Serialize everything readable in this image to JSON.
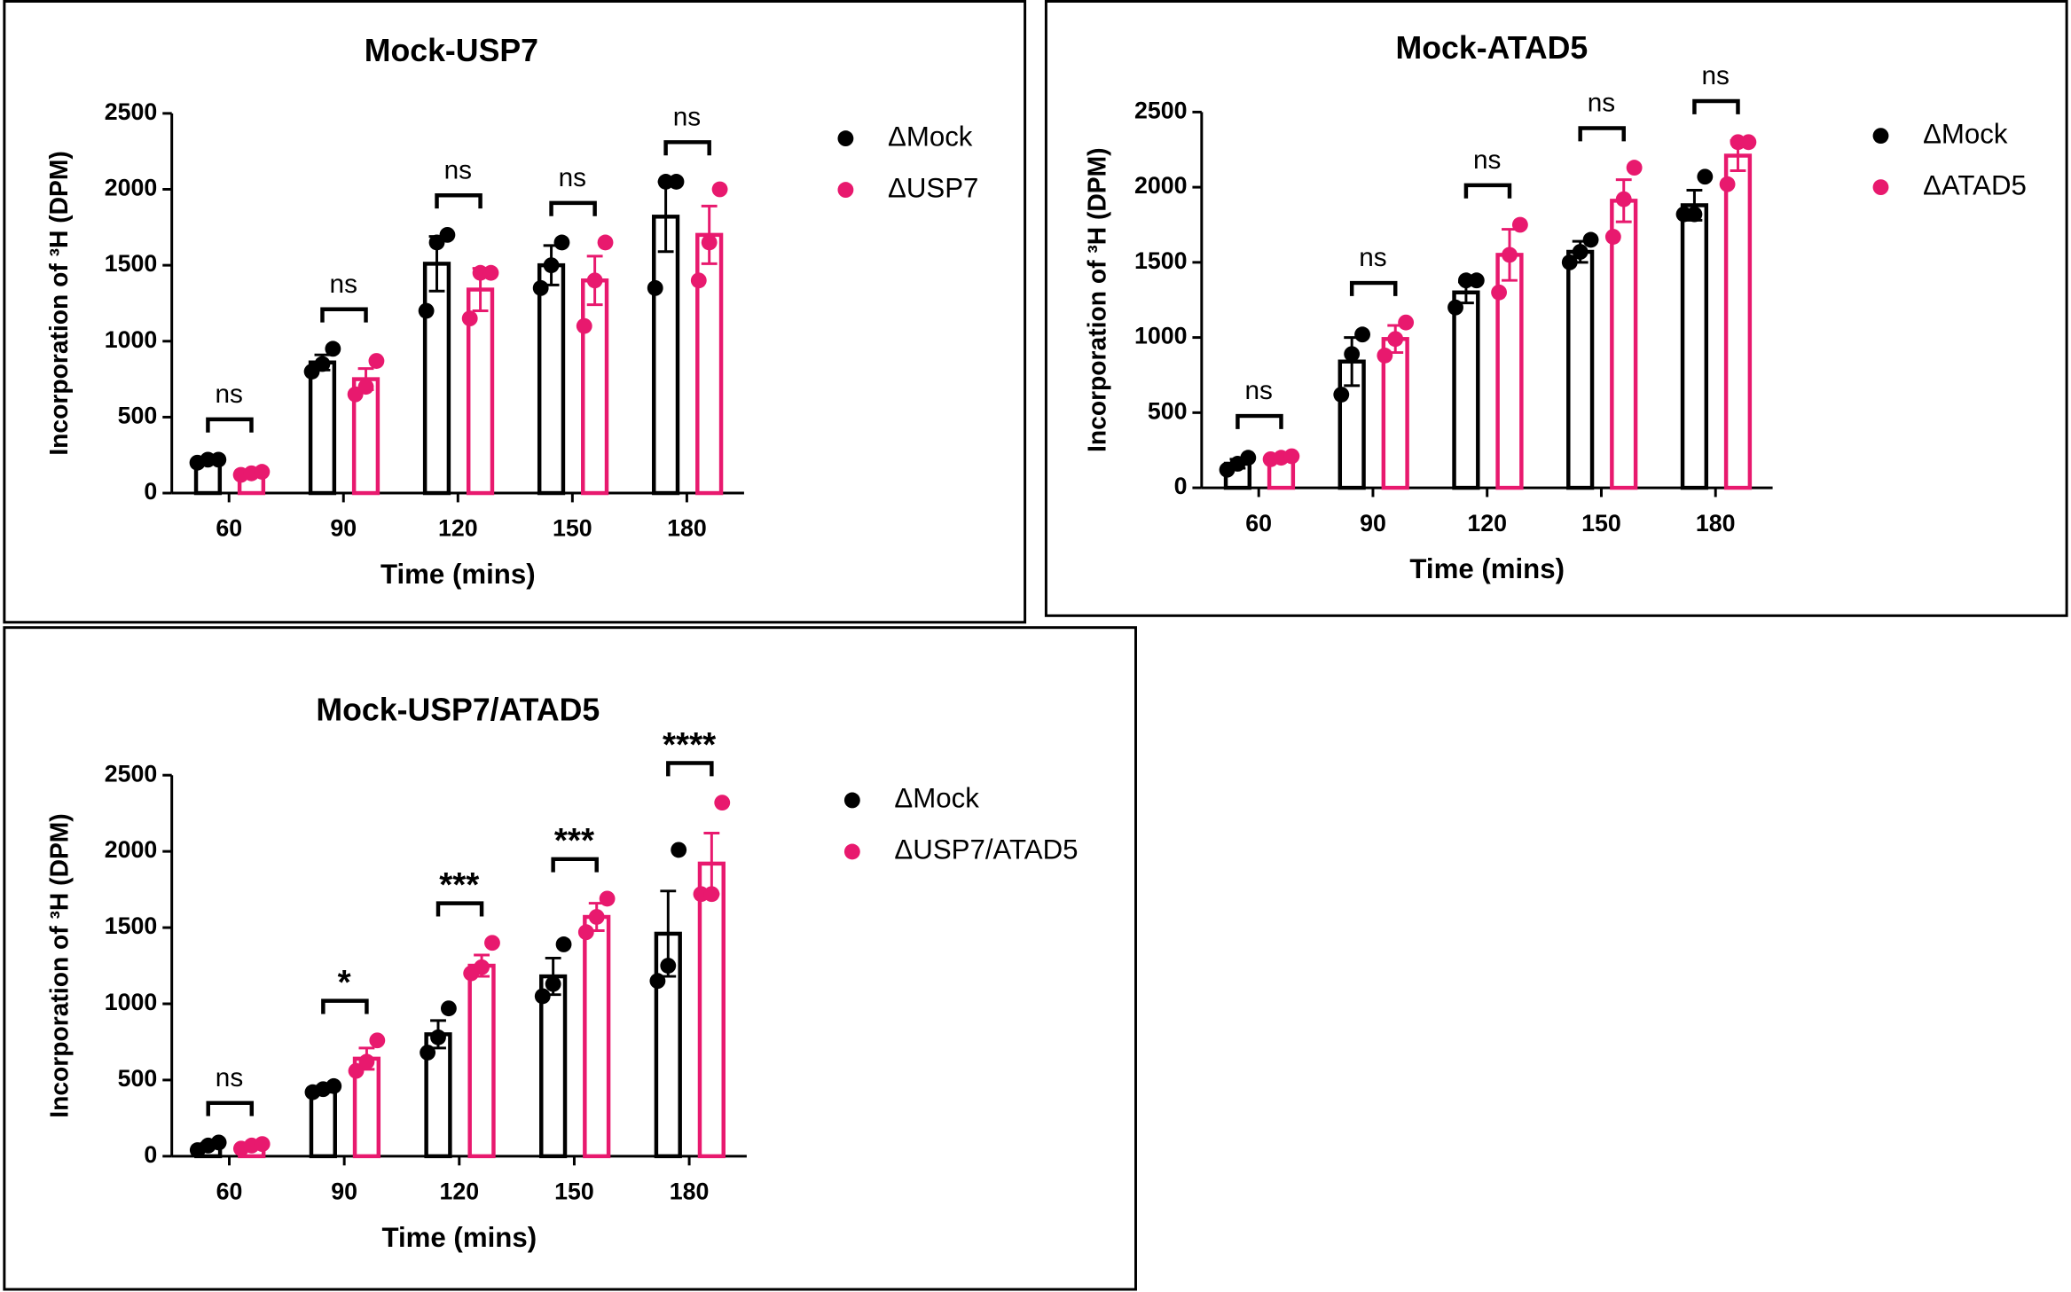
{
  "chart_data": [
    {
      "type": "bar",
      "title": "Mock-USP7",
      "x_label": "Time (mins)",
      "y_label": "Incorporation of ³H (DPM)",
      "categories": [
        "60",
        "90",
        "120",
        "150",
        "180"
      ],
      "series": [
        {
          "name": "ΔMock",
          "color": "#000000",
          "values": [
            210,
            860,
            1510,
            1500,
            1820
          ],
          "errors": [
            15,
            50,
            180,
            130,
            230
          ],
          "points": [
            [
              200,
              220,
              220
            ],
            [
              800,
              850,
              950
            ],
            [
              1200,
              1650,
              1700
            ],
            [
              1350,
              1500,
              1650
            ],
            [
              1350,
              2050,
              2050
            ]
          ]
        },
        {
          "name": "ΔUSP7",
          "color": "#e8196e",
          "values": [
            130,
            750,
            1340,
            1400,
            1700
          ],
          "errors": [
            10,
            70,
            140,
            160,
            190
          ],
          "points": [
            [
              120,
              130,
              140
            ],
            [
              650,
              700,
              870
            ],
            [
              1150,
              1450,
              1450
            ],
            [
              1100,
              1400,
              1650
            ],
            [
              1400,
              1650,
              2000
            ]
          ]
        }
      ],
      "significance": [
        "ns",
        "ns",
        "ns",
        "ns",
        "ns"
      ],
      "ylim": [
        0,
        2500
      ],
      "yticks": [
        0,
        500,
        1000,
        1500,
        2000,
        2500
      ]
    },
    {
      "type": "bar",
      "title": "Mock-ATAD5",
      "x_label": "Time (mins)",
      "y_label": "Incorporation of ³H (DPM)",
      "categories": [
        "60",
        "90",
        "120",
        "150",
        "180"
      ],
      "series": [
        {
          "name": "ΔMock",
          "color": "#000000",
          "values": [
            160,
            840,
            1300,
            1570,
            1880
          ],
          "errors": [
            30,
            160,
            70,
            70,
            100
          ],
          "points": [
            [
              120,
              160,
              200
            ],
            [
              620,
              890,
              1020
            ],
            [
              1200,
              1380,
              1380
            ],
            [
              1500,
              1570,
              1650
            ],
            [
              1820,
              1820,
              2070
            ]
          ]
        },
        {
          "name": "ΔATAD5",
          "color": "#e8196e",
          "values": [
            200,
            990,
            1550,
            1910,
            2210
          ],
          "errors": [
            15,
            90,
            170,
            140,
            100
          ],
          "points": [
            [
              190,
              200,
              210
            ],
            [
              880,
              990,
              1100
            ],
            [
              1300,
              1550,
              1750
            ],
            [
              1670,
              1920,
              2130
            ],
            [
              2020,
              2300,
              2300
            ]
          ]
        }
      ],
      "significance": [
        "ns",
        "ns",
        "ns",
        "ns",
        "ns"
      ],
      "ylim": [
        0,
        2500
      ],
      "yticks": [
        0,
        500,
        1000,
        1500,
        2000,
        2500
      ]
    },
    {
      "type": "bar",
      "title": "Mock-USP7/ATAD5",
      "x_label": "Time (mins)",
      "y_label": "Incorporation of ³H (DPM)",
      "categories": [
        "60",
        "90",
        "120",
        "150",
        "180"
      ],
      "series": [
        {
          "name": "ΔMock",
          "color": "#000000",
          "values": [
            70,
            440,
            800,
            1180,
            1460
          ],
          "errors": [
            15,
            20,
            90,
            120,
            280
          ],
          "points": [
            [
              40,
              70,
              90
            ],
            [
              420,
              440,
              460
            ],
            [
              680,
              780,
              970
            ],
            [
              1050,
              1130,
              1390
            ],
            [
              1150,
              1250,
              2010
            ]
          ]
        },
        {
          "name": "ΔUSP7/ATAD5",
          "color": "#e8196e",
          "values": [
            70,
            640,
            1250,
            1570,
            1920
          ],
          "errors": [
            10,
            70,
            70,
            90,
            200
          ],
          "points": [
            [
              50,
              70,
              80
            ],
            [
              560,
              620,
              760
            ],
            [
              1200,
              1240,
              1400
            ],
            [
              1470,
              1570,
              1690
            ],
            [
              1720,
              1720,
              2320
            ]
          ]
        }
      ],
      "significance": [
        "ns",
        "*",
        "***",
        "***",
        "****"
      ],
      "ylim": [
        0,
        2500
      ],
      "yticks": [
        0,
        500,
        1000,
        1500,
        2000,
        2500
      ]
    }
  ]
}
